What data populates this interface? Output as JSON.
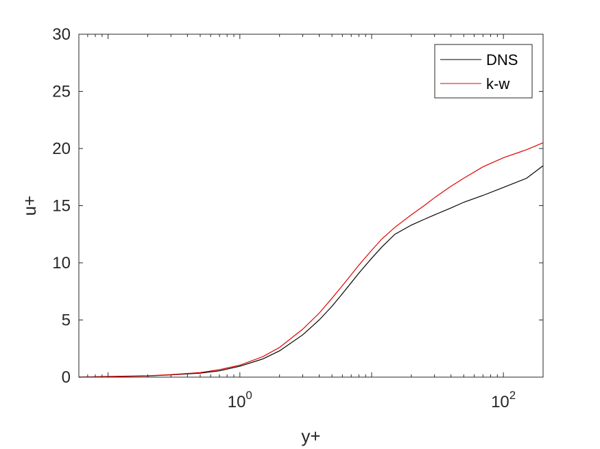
{
  "chart_data": {
    "type": "line",
    "xscale": "log",
    "xlabel": "y+",
    "ylabel": "u+",
    "xlim": [
      0.06,
      200
    ],
    "ylim": [
      0,
      30
    ],
    "xticks": [
      {
        "value": 1,
        "base": "10",
        "exp": "0"
      },
      {
        "value": 100,
        "base": "10",
        "exp": "2"
      }
    ],
    "yticks": [
      0,
      5,
      10,
      15,
      20,
      25,
      30
    ],
    "grid": false,
    "legend_position": "top-right",
    "series": [
      {
        "name": "DNS",
        "color": "#000000",
        "x": [
          0.06,
          0.1,
          0.2,
          0.3,
          0.5,
          0.7,
          1.0,
          1.5,
          2.0,
          3.0,
          4.0,
          5.0,
          6.0,
          8.0,
          10.0,
          12.0,
          15.0,
          20.0,
          25.0,
          30.0,
          40.0,
          50.0,
          70.0,
          100.0,
          150.0,
          200.0
        ],
        "y": [
          0.0,
          0.05,
          0.1,
          0.2,
          0.35,
          0.55,
          0.95,
          1.6,
          2.3,
          3.7,
          5.0,
          6.2,
          7.3,
          9.1,
          10.4,
          11.4,
          12.5,
          13.3,
          13.8,
          14.2,
          14.8,
          15.3,
          15.9,
          16.6,
          17.4,
          18.5
        ]
      },
      {
        "name": "k-w",
        "color": "#e00000",
        "x": [
          0.06,
          0.1,
          0.2,
          0.3,
          0.5,
          0.7,
          1.0,
          1.5,
          2.0,
          3.0,
          4.0,
          5.0,
          6.0,
          8.0,
          10.0,
          12.0,
          15.0,
          20.0,
          25.0,
          30.0,
          40.0,
          50.0,
          70.0,
          100.0,
          150.0,
          200.0
        ],
        "y": [
          0.0,
          0.06,
          0.12,
          0.22,
          0.4,
          0.65,
          1.05,
          1.8,
          2.6,
          4.2,
          5.6,
          6.9,
          8.0,
          9.8,
          11.1,
          12.1,
          13.1,
          14.2,
          15.0,
          15.7,
          16.7,
          17.4,
          18.4,
          19.2,
          19.9,
          20.5
        ]
      }
    ]
  }
}
